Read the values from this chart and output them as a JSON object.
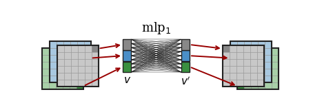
{
  "bg_color": "#ffffff",
  "title": "mlp$_1$",
  "title_fontsize": 13,
  "label_v": "$v$",
  "label_vprime": "$v'$",
  "label_fontsize": 11,
  "grid_line_color": "#999999",
  "border_color": "#222222",
  "cell_gray": "#c8c8c8",
  "cell_blue": "#a8c8e0",
  "cell_green": "#a8d0a8",
  "cell_light_gray_bg": "#e0e0e0",
  "cell_dark_gray": "#888888",
  "cell_bright_blue": "#3a7fc0",
  "cell_bright_green": "#3a9040",
  "arrow_color": "#990000",
  "mlp_line_color": "#111111",
  "strip_gray": "#888888",
  "strip_blue": "#4a8fc8",
  "strip_green": "#3a9040",
  "figw": 4.54,
  "figh": 1.5,
  "dpi": 100
}
